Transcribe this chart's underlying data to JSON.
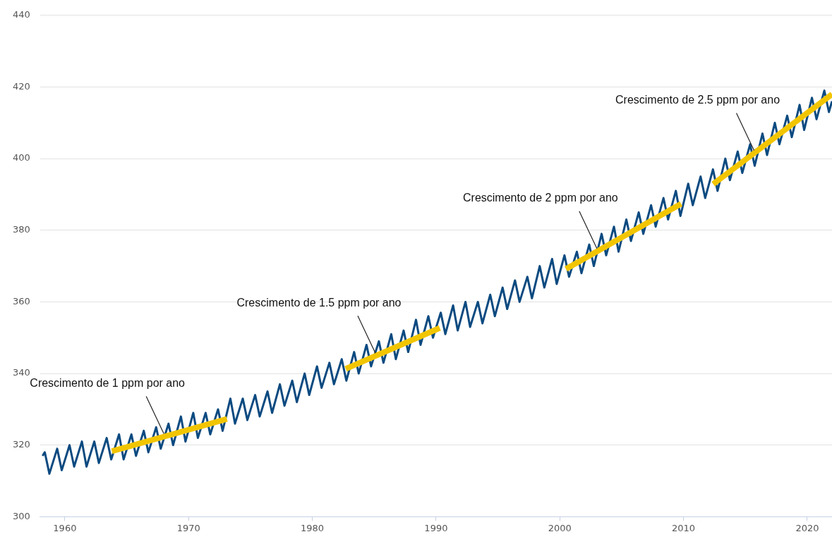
{
  "chart_data": {
    "type": "line",
    "xlim": [
      1958,
      2022
    ],
    "xticks": [
      1960,
      1970,
      1980,
      1990,
      2000,
      2010,
      2020
    ],
    "ylim": [
      300,
      440
    ],
    "yticks": [
      300,
      320,
      340,
      360,
      380,
      400,
      420,
      440
    ],
    "grid": "y",
    "legend": false,
    "marker": "none",
    "line_style": "solid",
    "series": [
      {
        "color": "#0b4a80",
        "x": [
          1958.2,
          1958.38,
          1958.75,
          1959.38,
          1959.75,
          1960.38,
          1960.75,
          1961.38,
          1961.75,
          1962.38,
          1962.75,
          1963.38,
          1963.75,
          1964.38,
          1964.75,
          1965.38,
          1965.75,
          1966.38,
          1966.75,
          1967.38,
          1967.75,
          1968.38,
          1968.75,
          1969.38,
          1969.75,
          1970.38,
          1970.75,
          1971.38,
          1971.75,
          1972.38,
          1972.75,
          1973.38,
          1973.75,
          1974.38,
          1974.75,
          1975.38,
          1975.75,
          1976.38,
          1976.75,
          1977.38,
          1977.75,
          1978.38,
          1978.75,
          1979.38,
          1979.75,
          1980.38,
          1980.75,
          1981.38,
          1981.75,
          1982.38,
          1982.75,
          1983.38,
          1983.75,
          1984.38,
          1984.75,
          1985.38,
          1985.75,
          1986.38,
          1986.75,
          1987.38,
          1987.75,
          1988.38,
          1988.75,
          1989.38,
          1989.75,
          1990.38,
          1990.75,
          1991.38,
          1991.75,
          1992.38,
          1992.75,
          1993.38,
          1993.75,
          1994.38,
          1994.75,
          1995.38,
          1995.75,
          1996.38,
          1996.75,
          1997.38,
          1997.75,
          1998.38,
          1998.75,
          1999.38,
          1999.75,
          2000.38,
          2000.75,
          2001.38,
          2001.75,
          2002.38,
          2002.75,
          2003.38,
          2003.75,
          2004.38,
          2004.75,
          2005.38,
          2005.75,
          2006.38,
          2006.75,
          2007.38,
          2007.75,
          2008.38,
          2008.75,
          2009.38,
          2009.75,
          2010.38,
          2010.75,
          2011.38,
          2011.75,
          2012.38,
          2012.75,
          2013.38,
          2013.75,
          2014.38,
          2014.75,
          2015.38,
          2015.75,
          2016.38,
          2016.75,
          2017.38,
          2017.75,
          2018.38,
          2018.75,
          2019.38,
          2019.75,
          2020.38,
          2020.75,
          2021.38,
          2021.75,
          2022
        ],
        "values": [
          317,
          318,
          312,
          319,
          313,
          320,
          314,
          321,
          314,
          321,
          315,
          322,
          316,
          323,
          316,
          323,
          317,
          324,
          318,
          325,
          319,
          326,
          320,
          328,
          321,
          329,
          322,
          329,
          323,
          330,
          324,
          333,
          326,
          333,
          327,
          334,
          328,
          335,
          329,
          337,
          331,
          338,
          332,
          340,
          334,
          342,
          336,
          343,
          337,
          344,
          338,
          346,
          340,
          348,
          342,
          349,
          343,
          351,
          344,
          352,
          346,
          355,
          348,
          356,
          350,
          357,
          351,
          359,
          352,
          360,
          353,
          360,
          354,
          362,
          356,
          364,
          358,
          366,
          360,
          367,
          361,
          370,
          364,
          372,
          365,
          373,
          367,
          374,
          368,
          376,
          370,
          379,
          373,
          381,
          374,
          383,
          377,
          385,
          379,
          387,
          381,
          389,
          383,
          391,
          384,
          393,
          387,
          395,
          389,
          397,
          391,
          400,
          394,
          402,
          396,
          404,
          398,
          407,
          401,
          410,
          404,
          412,
          406,
          415,
          408,
          417,
          411,
          419,
          413,
          416
        ]
      },
      {
        "type": "line",
        "color": "#f2c500",
        "x": [
          1963.8,
          1973.1
        ],
        "values": [
          318.3,
          327.3
        ]
      },
      {
        "type": "line",
        "color": "#f2c500",
        "x": [
          1982.7,
          1990.3
        ],
        "values": [
          341.3,
          352.7
        ]
      },
      {
        "type": "line",
        "color": "#f2c500",
        "x": [
          2000.5,
          2009.8
        ],
        "values": [
          369.2,
          387.4
        ]
      },
      {
        "type": "line",
        "color": "#f2c500",
        "x": [
          2012.4,
          2022
        ],
        "values": [
          392.9,
          418
        ]
      }
    ],
    "annotations": [
      {
        "text": "Crescimento de 1 ppm por ano",
        "x": 1968.0,
        "y": 322.4
      },
      {
        "text": "Crescimento de 1.5 ppm por ano",
        "x": 1985.1,
        "y": 344.9
      },
      {
        "text": "Crescimento de 2 ppm por ano",
        "x": 2003.0,
        "y": 374.1
      },
      {
        "text": "Crescimento de 2.5 ppm por ano",
        "x": 2015.7,
        "y": 401.5
      }
    ]
  }
}
